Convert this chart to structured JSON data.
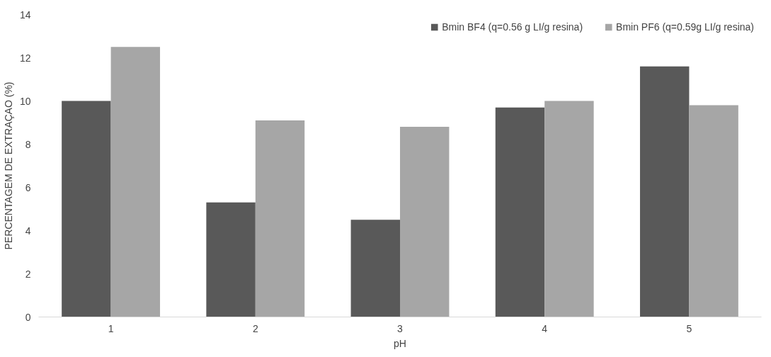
{
  "chart_data": {
    "type": "bar",
    "xlabel": "pH",
    "ylabel": "PERCENTAGEM DE EXTRAÇAO (%)",
    "categories": [
      "1",
      "2",
      "3",
      "4",
      "5"
    ],
    "series": [
      {
        "name": "Bmin BF4 (q=0.56 g LI/g resina)",
        "color": "#595959",
        "values": [
          10.0,
          5.3,
          4.5,
          9.7,
          11.6
        ]
      },
      {
        "name": "Bmin PF6 (q=0.59g LI/g resina)",
        "color": "#a6a6a6",
        "values": [
          12.5,
          9.1,
          8.8,
          10.0,
          9.8
        ]
      }
    ],
    "ylim": [
      0,
      14
    ],
    "yticks": [
      0,
      2,
      4,
      6,
      8,
      10,
      12,
      14
    ],
    "grid": false,
    "legend": "top right"
  }
}
